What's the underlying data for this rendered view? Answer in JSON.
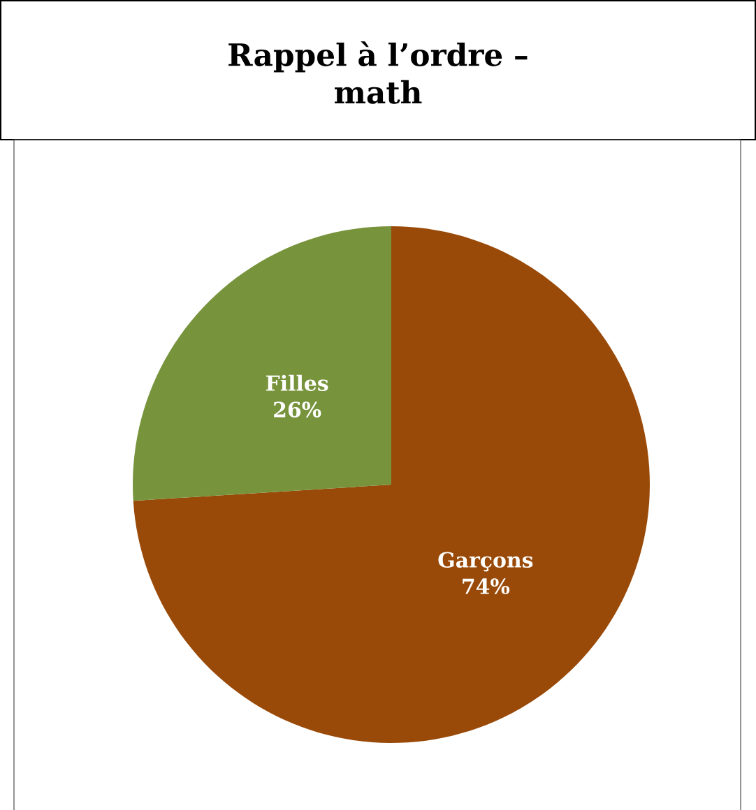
{
  "chart_data": {
    "type": "pie",
    "title": "Rappel à l’ordre –\nmath",
    "categories": [
      "Garçons",
      "Filles"
    ],
    "values": [
      74,
      26
    ],
    "value_labels": [
      "74%",
      "26%"
    ],
    "colors": [
      "#9a4a08",
      "#77933c"
    ]
  }
}
